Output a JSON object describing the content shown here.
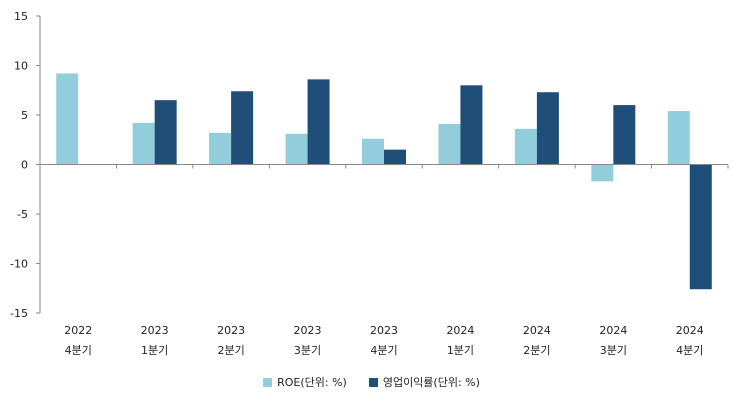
{
  "chart_data": {
    "type": "bar",
    "categories": [
      [
        "2022",
        "4분기"
      ],
      [
        "2023",
        "1분기"
      ],
      [
        "2023",
        "2분기"
      ],
      [
        "2023",
        "3분기"
      ],
      [
        "2023",
        "4분기"
      ],
      [
        "2024",
        "1분기"
      ],
      [
        "2024",
        "2분기"
      ],
      [
        "2024",
        "3분기"
      ],
      [
        "2024",
        "4분기"
      ]
    ],
    "series": [
      {
        "name": "ROE(단위: %)",
        "color": "#92cddc",
        "values": [
          9.2,
          4.2,
          3.2,
          3.1,
          2.6,
          4.1,
          3.6,
          -1.7,
          5.4
        ]
      },
      {
        "name": "영업이익률(단위: %)",
        "color": "#1f4e79",
        "values": [
          null,
          6.5,
          7.4,
          8.6,
          1.5,
          8.0,
          7.3,
          6.0,
          -12.6
        ]
      }
    ],
    "ylim": [
      -15,
      15
    ],
    "yticks": [
      15,
      10,
      5,
      0,
      -5,
      -10,
      -15
    ],
    "grid": false,
    "legend_position": "bottom"
  }
}
